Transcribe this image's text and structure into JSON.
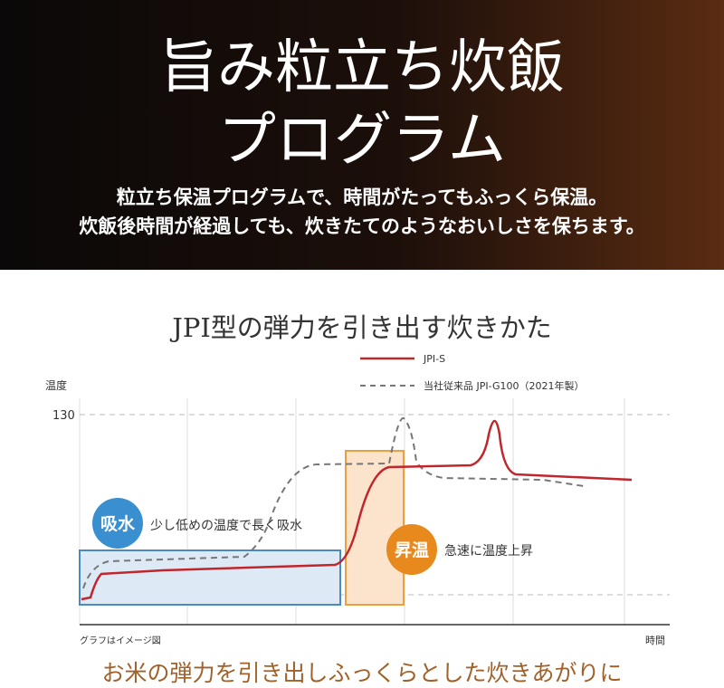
{
  "header": {
    "title": [
      "旨み粒立ち炊飯",
      "プログラム"
    ],
    "subtitle": [
      "粒立ち保温プログラムで、時間がたってもふっくら保温。",
      "炊飯後時間が経過しても、炊きたてのようなおいしさを保ちます。"
    ]
  },
  "graph": {
    "title": "JPI型の弾力を引き出す炊きかた",
    "legend": [
      "JPI-S",
      "当社従来品 JPI-G100（2021年製）"
    ],
    "y_label": "温度",
    "y_tick": "130",
    "note": "グラフはイメージ図",
    "x_label": "時間",
    "stages": [
      {
        "badge": "吸水",
        "text": "少し低めの温度で長く吸水"
      },
      {
        "badge": "昇温",
        "text": "急速に温度上昇"
      }
    ]
  },
  "footer": "お米の弾力を引き出しふっくらとした炊きあがりに"
}
